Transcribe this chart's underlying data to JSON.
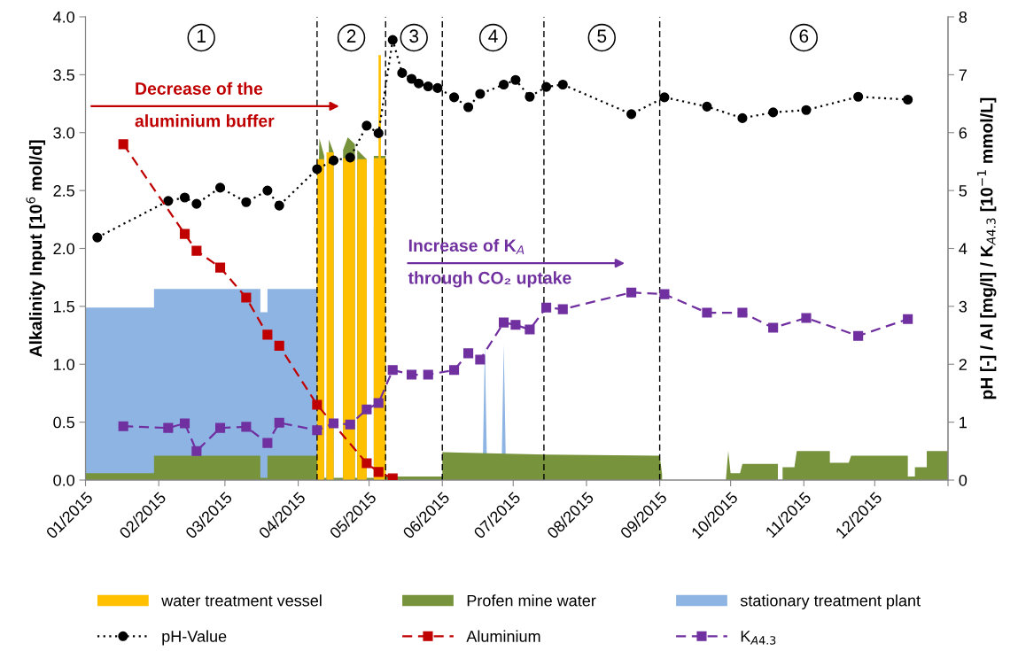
{
  "chart_data": {
    "type": "area",
    "ylabel": "Alkalinity Input [10$^{6}$ mol/d]",
    "y2label": "pH [-] / Al [mg/l] / K$_{A4.3}$ [10$^{−1}$ mmol/L]",
    "xlim": [
      "2015-01-01",
      "2016-01-01"
    ],
    "xticks": [
      {
        "value": "2015-01-01",
        "label": "01/2015"
      },
      {
        "value": "2015-02-01",
        "label": "02/2015"
      },
      {
        "value": "2015-03-01",
        "label": "03/2015"
      },
      {
        "value": "2015-04-01",
        "label": "04/2015"
      },
      {
        "value": "2015-05-01",
        "label": "05/2015"
      },
      {
        "value": "2015-06-01",
        "label": "06/2015"
      },
      {
        "value": "2015-07-01",
        "label": "07/2015"
      },
      {
        "value": "2015-08-01",
        "label": "08/2015"
      },
      {
        "value": "2015-09-01",
        "label": "09/2015"
      },
      {
        "value": "2015-10-01",
        "label": "10/2015"
      },
      {
        "value": "2015-11-01",
        "label": "11/2015"
      },
      {
        "value": "2015-12-01",
        "label": "12/2015"
      },
      {
        "value": "2016-01-01",
        "label": null
      }
    ],
    "ylim": [
      0,
      4
    ],
    "yticks": [
      {
        "value": 0,
        "label": "0.0"
      },
      {
        "value": 0.5,
        "label": "0.5"
      },
      {
        "value": 1,
        "label": "1.0"
      },
      {
        "value": 1.5,
        "label": "1.5"
      },
      {
        "value": 2,
        "label": "2.0"
      },
      {
        "value": 2.5,
        "label": "2.5"
      },
      {
        "value": 3,
        "label": "3.0"
      },
      {
        "value": 3.5,
        "label": "3.5"
      },
      {
        "value": 4,
        "label": "4.0"
      }
    ],
    "y2lim": [
      0,
      8
    ],
    "y2ticks": [
      0,
      1,
      2,
      3,
      4,
      5,
      6,
      7,
      8
    ],
    "legend": "bottom",
    "ref_lines": [
      {
        "axis": "x",
        "value": "2015-04-09",
        "label": null,
        "color": "#000000",
        "line_style": "dashed"
      },
      {
        "axis": "x",
        "value": "2015-05-08",
        "label": null,
        "color": "#000000",
        "line_style": "dashed"
      },
      {
        "axis": "x",
        "value": "2015-06-01",
        "label": null,
        "color": "#000000",
        "line_style": "dashed"
      },
      {
        "axis": "x",
        "value": "2015-07-14",
        "label": null,
        "color": "#000000",
        "line_style": "dashed"
      },
      {
        "axis": "x",
        "value": "2015-09-01",
        "label": null,
        "color": "#000000",
        "line_style": "dashed"
      }
    ],
    "annotations": [
      "1",
      "2",
      "3",
      "4",
      "5",
      "6",
      "Decrease of the\naluminium buffer",
      "Increase of K$_{A}$\nthrough CO₂ uptake"
    ],
    "series": [
      {
        "name": "water treatment vessel",
        "color": "#ffc000",
        "x": [
          "2015-04-09",
          "2015-04-09",
          "2015-04-12",
          "2015-04-12",
          "2015-04-13",
          "2015-04-13",
          "2015-04-16",
          "2015-04-16",
          "2015-04-20",
          "2015-04-20",
          "2015-04-25",
          "2015-04-25",
          "2015-04-26",
          "2015-04-26",
          "2015-04-30",
          "2015-04-30",
          "2015-05-03",
          "2015-05-03",
          "2015-05-05",
          "2015-05-05",
          "2015-05-06",
          "2015-05-06",
          "2015-05-08",
          "2015-05-08"
        ],
        "values": [
          0,
          2.77,
          2.77,
          0,
          0,
          2.83,
          2.83,
          0,
          0,
          2.78,
          2.78,
          0,
          0,
          2.77,
          2.77,
          0,
          0,
          2.78,
          2.78,
          3.67,
          3.67,
          2.78,
          2.78,
          0
        ]
      },
      {
        "name": "Profen mine water",
        "color": "#77933c",
        "x": [
          "2015-01-01",
          "2015-01-30",
          "2015-01-30",
          "2015-03-16",
          "2015-03-16",
          "2015-03-19",
          "2015-03-19",
          "2015-04-09",
          "2015-04-09",
          "2015-04-10",
          "2015-04-12",
          "2015-04-12",
          "2015-04-13",
          "2015-04-14",
          "2015-04-16",
          "2015-04-16",
          "2015-04-20",
          "2015-04-20",
          "2015-04-22",
          "2015-04-25",
          "2015-04-25",
          "2015-04-26",
          "2015-04-26",
          "2015-04-30",
          "2015-04-30",
          "2015-05-03",
          "2015-05-03",
          "2015-05-08",
          "2015-05-08",
          "2015-06-01",
          "2015-06-01",
          "2015-07-15",
          "2015-09-01",
          "2015-09-02",
          "2015-09-02",
          "2015-09-29",
          "2015-09-30",
          "2015-10-01",
          "2015-10-05",
          "2015-10-06",
          "2015-10-21",
          "2015-10-21",
          "2015-10-23",
          "2015-10-23",
          "2015-10-28",
          "2015-10-29",
          "2015-11-12",
          "2015-11-12",
          "2015-11-20",
          "2015-11-21",
          "2015-12-15",
          "2015-12-15",
          "2015-12-18",
          "2015-12-18",
          "2015-12-23",
          "2015-12-23",
          "2016-01-01"
        ],
        "values": [
          0.06,
          0.06,
          0.21,
          0.21,
          0.02,
          0.02,
          0.21,
          0.21,
          2.0,
          2.95,
          2.8,
          0.02,
          0.02,
          2.94,
          2.83,
          0.02,
          0.02,
          2.85,
          2.96,
          2.9,
          0.02,
          0.02,
          2.85,
          2.77,
          0.02,
          0.02,
          2.8,
          2.8,
          0.03,
          0.03,
          0.24,
          0.22,
          0.21,
          0.05,
          0,
          0,
          0.25,
          0.06,
          0.06,
          0.14,
          0.14,
          0,
          0,
          0.11,
          0.11,
          0.25,
          0.25,
          0.15,
          0.15,
          0.21,
          0.21,
          0.03,
          0.03,
          0.11,
          0.11,
          0.25,
          0.25
        ]
      },
      {
        "name": "stationary treatment plant",
        "color": "#8eb4e3",
        "x": [
          "2015-01-01",
          "2015-01-30",
          "2015-01-30",
          "2015-03-16",
          "2015-03-16",
          "2015-03-19",
          "2015-03-19",
          "2015-04-09",
          "2015-04-09",
          "2015-06-18",
          "2015-06-19",
          "2015-06-20",
          "2015-06-26",
          "2015-06-27",
          "2015-06-28",
          "2016-01-01"
        ],
        "values": [
          1.49,
          1.49,
          1.65,
          1.65,
          1.45,
          1.45,
          1.65,
          1.65,
          0,
          0,
          1.17,
          0,
          0,
          1.17,
          0,
          0
        ]
      },
      {
        "name": "pH-Value",
        "type": "line",
        "axis": "y2",
        "color": "#000000",
        "marker": "circle",
        "line_style": "dotted",
        "x": [
          "2015-01-06",
          "2015-02-05",
          "2015-02-12",
          "2015-02-17",
          "2015-02-27",
          "2015-03-10",
          "2015-03-19",
          "2015-03-24",
          "2015-04-09",
          "2015-04-16",
          "2015-04-23",
          "2015-04-30",
          "2015-05-05",
          "2015-05-11",
          "2015-05-15",
          "2015-05-19",
          "2015-05-22",
          "2015-05-26",
          "2015-05-30",
          "2015-06-06",
          "2015-06-12",
          "2015-06-17",
          "2015-06-27",
          "2015-07-02",
          "2015-07-08",
          "2015-07-15",
          "2015-07-22",
          "2015-08-20",
          "2015-09-03",
          "2015-09-21",
          "2015-10-06",
          "2015-10-19",
          "2015-11-02",
          "2015-11-24",
          "2015-12-15"
        ],
        "values": [
          4.19,
          4.82,
          4.88,
          4.77,
          5.05,
          4.8,
          5.0,
          4.74,
          5.37,
          5.52,
          5.57,
          6.12,
          5.99,
          7.6,
          7.03,
          6.93,
          6.85,
          6.8,
          6.77,
          6.61,
          6.44,
          6.67,
          6.83,
          6.91,
          6.62,
          6.79,
          6.83,
          6.32,
          6.61,
          6.45,
          6.25,
          6.35,
          6.39,
          6.62,
          6.57
        ]
      },
      {
        "name": "Aluminium",
        "type": "line",
        "axis": "y2",
        "color": "#c00000",
        "marker": "square",
        "line_style": "dashed",
        "x": [
          "2015-01-17",
          "2015-02-12",
          "2015-02-17",
          "2015-02-27",
          "2015-03-10",
          "2015-03-19",
          "2015-03-24",
          "2015-04-09",
          "2015-04-30",
          "2015-05-05",
          "2015-05-11"
        ],
        "values": [
          5.8,
          4.25,
          3.96,
          3.67,
          3.15,
          2.51,
          2.32,
          1.3,
          0.29,
          0.14,
          0.03
        ]
      },
      {
        "name": "K$_{A4.3}$",
        "type": "line",
        "axis": "y2",
        "color": "#7030a0",
        "marker": "square",
        "line_style": "dashed",
        "x": [
          "2015-01-17",
          "2015-02-05",
          "2015-02-12",
          "2015-02-17",
          "2015-02-27",
          "2015-03-10",
          "2015-03-19",
          "2015-03-24",
          "2015-04-09",
          "2015-04-16",
          "2015-04-23",
          "2015-04-30",
          "2015-05-05",
          "2015-05-11",
          "2015-05-19",
          "2015-05-26",
          "2015-06-06",
          "2015-06-12",
          "2015-06-17",
          "2015-06-27",
          "2015-07-02",
          "2015-07-08",
          "2015-07-15",
          "2015-07-22",
          "2015-08-20",
          "2015-09-03",
          "2015-09-21",
          "2015-10-06",
          "2015-10-19",
          "2015-11-02",
          "2015-11-24",
          "2015-12-15"
        ],
        "values": [
          0.93,
          0.9,
          0.98,
          0.5,
          0.9,
          0.92,
          0.64,
          0.99,
          0.86,
          0.98,
          0.96,
          1.22,
          1.33,
          1.9,
          1.82,
          1.82,
          1.9,
          2.19,
          2.08,
          2.72,
          2.68,
          2.6,
          2.98,
          2.95,
          3.24,
          3.21,
          2.89,
          2.89,
          2.63,
          2.8,
          2.49,
          2.78
        ]
      }
    ]
  }
}
